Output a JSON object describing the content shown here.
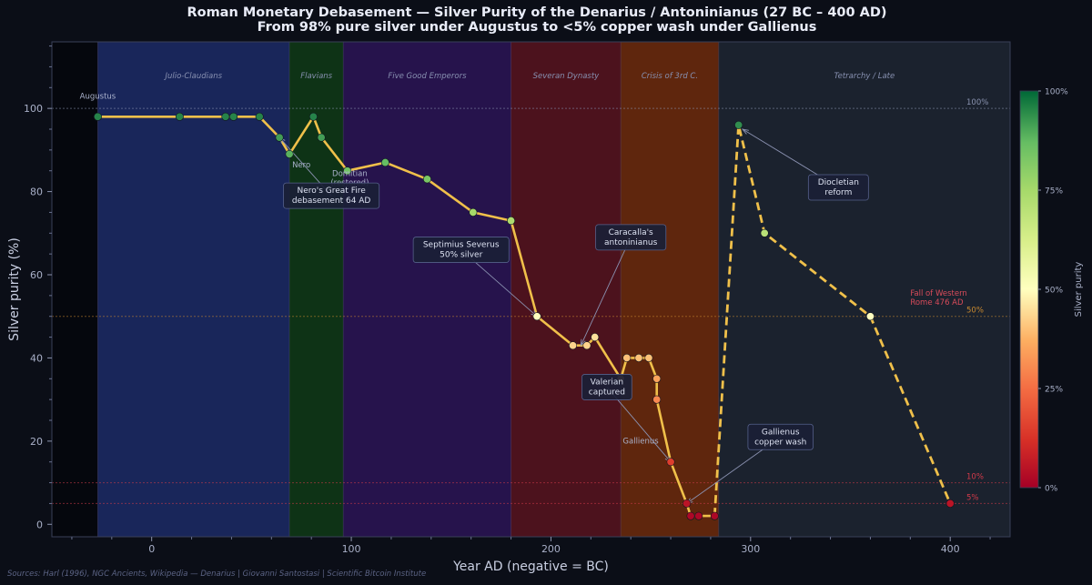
{
  "chart_data": {
    "type": "line",
    "title": "Roman Monetary Debasement — Silver Purity of the Denarius / Antoninianus  (27 BC – 400 AD)",
    "subtitle": "From 98% pure silver under Augustus to <5% copper wash under Gallienus",
    "xlabel": "Year AD  (negative = BC)",
    "ylabel": "Silver purity  (%)",
    "xlim": [
      -50,
      430
    ],
    "ylim": [
      -3,
      116
    ],
    "xticks": [
      0,
      100,
      200,
      300,
      400
    ],
    "yticks": [
      0,
      20,
      40,
      60,
      80,
      100
    ],
    "grid": false,
    "eras": [
      {
        "name": "",
        "start": -50,
        "end": -27,
        "color": "#05060c"
      },
      {
        "name": "Julio-Claudians",
        "start": -27,
        "end": 69,
        "color": "#1c2a66"
      },
      {
        "name": "Flavians",
        "start": 69,
        "end": 96,
        "color": "#0f3a16"
      },
      {
        "name": "Five Good Emperors",
        "start": 96,
        "end": 180,
        "color": "#2b1456"
      },
      {
        "name": "Severan Dynasty",
        "start": 180,
        "end": 235,
        "color": "#58131f"
      },
      {
        "name": "Crisis of 3rd C.",
        "start": 235,
        "end": 284,
        "color": "#6f2a0c"
      },
      {
        "name": "Tetrarchy / Late",
        "start": 284,
        "end": 430,
        "color": "#1e2633"
      }
    ],
    "series": [
      {
        "values": [
          {
            "x": -27,
            "y": 98
          },
          {
            "x": 14,
            "y": 98
          },
          {
            "x": 37,
            "y": 98
          },
          {
            "x": 41,
            "y": 98
          },
          {
            "x": 54,
            "y": 98
          },
          {
            "x": 64,
            "y": 93
          },
          {
            "x": 69,
            "y": 89
          },
          {
            "x": 81,
            "y": 98
          },
          {
            "x": 85,
            "y": 93
          },
          {
            "x": 98,
            "y": 85
          },
          {
            "x": 117,
            "y": 87
          },
          {
            "x": 138,
            "y": 83
          },
          {
            "x": 161,
            "y": 75
          },
          {
            "x": 180,
            "y": 73
          },
          {
            "x": 193,
            "y": 50
          },
          {
            "x": 211,
            "y": 43
          },
          {
            "x": 218,
            "y": 43
          },
          {
            "x": 222,
            "y": 45
          },
          {
            "x": 235,
            "y": 35
          },
          {
            "x": 238,
            "y": 40
          },
          {
            "x": 244,
            "y": 40
          },
          {
            "x": 249,
            "y": 40
          },
          {
            "x": 253,
            "y": 35
          },
          {
            "x": 253,
            "y": 30
          },
          {
            "x": 260,
            "y": 15
          },
          {
            "x": 268,
            "y": 5
          },
          {
            "x": 270,
            "y": 2
          },
          {
            "x": 274,
            "y": 2
          },
          {
            "x": 282,
            "y": 2
          }
        ]
      },
      {
        "style": "dashed",
        "values": [
          {
            "x": 282,
            "y": 2
          },
          {
            "x": 294,
            "y": 96
          },
          {
            "x": 307,
            "y": 70
          },
          {
            "x": 360,
            "y": 50
          },
          {
            "x": 400,
            "y": 5
          }
        ]
      }
    ],
    "reference_lines": [
      {
        "y": 100,
        "label": "100%",
        "color": "#8a93b0"
      },
      {
        "y": 50,
        "label": "50%",
        "color": "#c8892f"
      },
      {
        "y": 10,
        "label": "10%",
        "color": "#d23a4a"
      },
      {
        "y": 5,
        "label": "5%",
        "color": "#d23a4a"
      }
    ],
    "point_labels": [
      {
        "text": "Augustus",
        "x": -27,
        "y": 98
      },
      {
        "text": "Nero",
        "x": 64,
        "y": 93
      },
      {
        "text": "Domitian\n(restored)",
        "x": 81,
        "y": 98
      },
      {
        "text": "Gallienus",
        "x": 260,
        "y": 15
      }
    ],
    "annotations": [
      {
        "text": "Nero's Great Fire\ndebasement 64 AD",
        "x": 64,
        "y": 93,
        "tx": 90,
        "ty": 79
      },
      {
        "text": "Septimius Severus\n50% silver",
        "x": 193,
        "y": 50,
        "tx": 155,
        "ty": 66
      },
      {
        "text": "Caracalla's\nantoninianus",
        "x": 215,
        "y": 43,
        "tx": 240,
        "ty": 69
      },
      {
        "text": "Valerian\ncaptured",
        "x": 260,
        "y": 15,
        "tx": 228,
        "ty": 33
      },
      {
        "text": "Diocletian\nreform",
        "x": 296,
        "y": 95,
        "tx": 344,
        "ty": 81
      },
      {
        "text": "Gallienus\ncopper wash",
        "x": 268,
        "y": 5,
        "tx": 315,
        "ty": 21
      }
    ],
    "event_label": {
      "text": "Fall of Western\nRome  476 AD",
      "x": 380,
      "y": 55,
      "color": "#d84b5a"
    },
    "colorbar": {
      "label": "Silver purity",
      "ticks": [
        "0%",
        "25%",
        "50%",
        "75%",
        "100%"
      ]
    }
  },
  "footer": "Sources: Harl (1996), NGC Ancients, Wikipedia — Denarius  |  Giovanni Santostasi  |  Scientific Bitcoin Institute"
}
